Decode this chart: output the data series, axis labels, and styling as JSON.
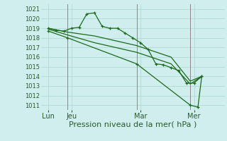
{
  "xlabel": "Pression niveau de la mer( hPa )",
  "bg_color": "#d0eeee",
  "grid_color": "#b0d8d8",
  "line_color": "#1a6b1a",
  "vline_color": "#888888",
  "ylim": [
    1010.5,
    1021.5
  ],
  "xlim": [
    0,
    24
  ],
  "ytick_vals": [
    1011,
    1012,
    1013,
    1014,
    1015,
    1016,
    1017,
    1018,
    1019,
    1020,
    1021
  ],
  "xtick_positions": [
    1,
    4,
    13,
    20
  ],
  "xtick_labels": [
    "Lun",
    "Jeu",
    "Mar",
    "Mer"
  ],
  "vlines": [
    3.5,
    12.5,
    19.5
  ],
  "s1_x": [
    1,
    2,
    3,
    4,
    5,
    6,
    7,
    8,
    9,
    10,
    11,
    12,
    13,
    14,
    15,
    16,
    17,
    18,
    19,
    20,
    21
  ],
  "s1_y": [
    1019.0,
    1018.8,
    1018.7,
    1019.0,
    1019.1,
    1020.5,
    1020.6,
    1019.2,
    1019.0,
    1019.0,
    1018.5,
    1018.0,
    1017.5,
    1016.8,
    1015.3,
    1015.2,
    1014.9,
    1014.6,
    1013.3,
    1013.3,
    1014.0
  ],
  "s2_x": [
    1,
    3.5,
    7,
    12.5,
    17,
    19.5,
    21
  ],
  "s2_y": [
    1019.0,
    1018.6,
    1018.2,
    1017.2,
    1016.0,
    1013.5,
    1014.0
  ],
  "s3_x": [
    1,
    3.5,
    7,
    12.5,
    17,
    19.5,
    21
  ],
  "s3_y": [
    1018.9,
    1018.3,
    1017.5,
    1016.5,
    1015.3,
    1013.2,
    1014.0
  ],
  "s4_x": [
    1,
    3.5,
    12.5,
    19.5,
    20.5,
    21
  ],
  "s4_y": [
    1018.7,
    1018.0,
    1015.3,
    1011.0,
    1010.8,
    1014.0
  ],
  "ylabel_fontsize": 6,
  "xlabel_fontsize": 8,
  "xtick_fontsize": 7
}
